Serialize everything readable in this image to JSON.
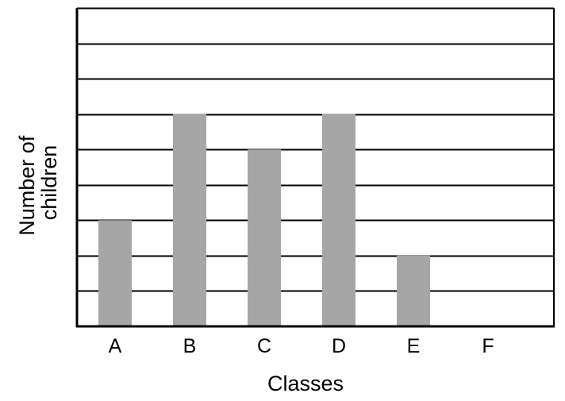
{
  "chart_data": {
    "type": "bar",
    "title": "",
    "xlabel": "Classes",
    "ylabel_lines": [
      "Number of",
      "children"
    ],
    "categories": [
      "A",
      "B",
      "C",
      "D",
      "E",
      "F"
    ],
    "values": [
      3,
      6,
      5,
      6,
      2,
      0
    ],
    "ylim": [
      0,
      9
    ],
    "grid": true,
    "y_tick_labels_shown": false,
    "bar_color": "#a6a6a6",
    "line_color": "#000000"
  }
}
